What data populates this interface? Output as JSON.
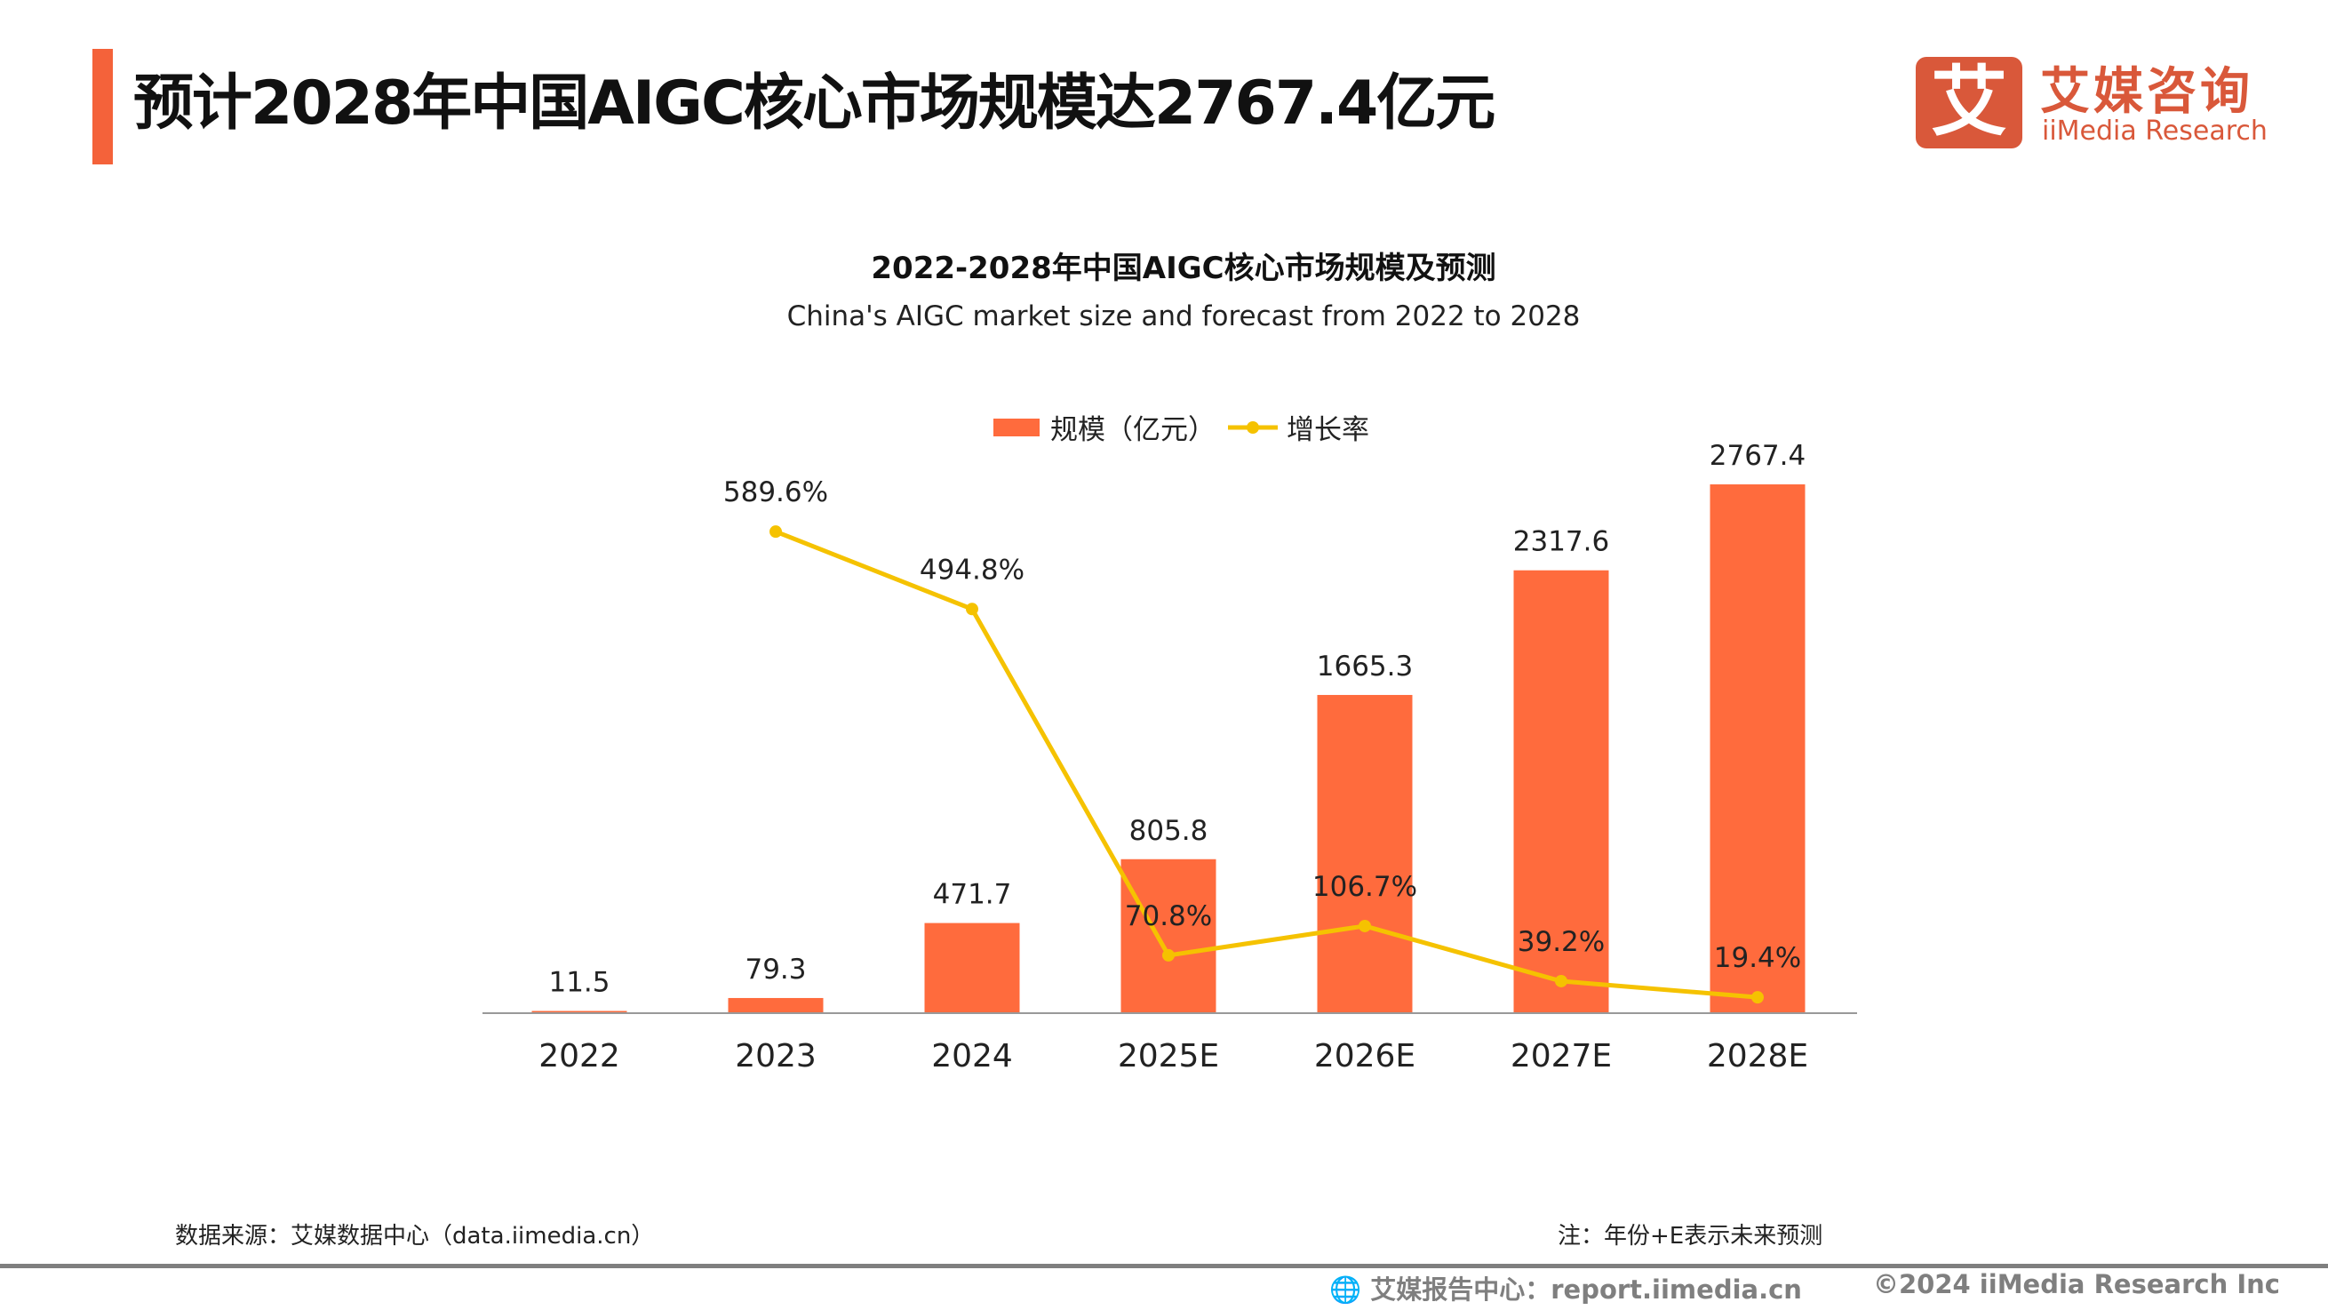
{
  "header": {
    "title": "预计2028年中国AIGC核心市场规模达2767.4亿元"
  },
  "logo": {
    "mark": "艾",
    "cn": "艾媒咨询",
    "en": "iiMedia Research"
  },
  "colors": {
    "accent": "#F4623A",
    "bar": "#FF6B3D",
    "line": "#F5C200",
    "logo": "#D9583A",
    "footer": "#7F7F7F"
  },
  "chart_data": {
    "type": "bar",
    "title": "2022-2028年中国AIGC核心市场规模及预测",
    "subtitle": "China's AIGC market size and forecast from 2022 to 2028",
    "categories": [
      "2022",
      "2023",
      "2024",
      "2025E",
      "2026E",
      "2027E",
      "2028E"
    ],
    "series": [
      {
        "name": "规模（亿元）",
        "type": "bar",
        "values": [
          11.5,
          79.3,
          471.7,
          805.8,
          1665.3,
          2317.6,
          2767.4
        ],
        "labels": [
          "11.5",
          "79.3",
          "471.7",
          "805.8",
          "1665.3",
          "2317.6",
          "2767.4"
        ]
      },
      {
        "name": "增长率",
        "type": "line",
        "unit": "%",
        "values": [
          null,
          589.6,
          494.8,
          70.8,
          106.7,
          39.2,
          19.4
        ],
        "labels": [
          "",
          "589.6%",
          "494.8%",
          "70.8%",
          "106.7%",
          "39.2%",
          "19.4%"
        ]
      }
    ],
    "legend": "top-center",
    "grid": false
  },
  "footer": {
    "source": "数据来源：艾媒数据中心（data.iimedia.cn）",
    "note": "注：年份+E表示未来预测",
    "report": "艾媒报告中心：report.iimedia.cn",
    "copyright": "©2024  iiMedia Research  Inc"
  }
}
